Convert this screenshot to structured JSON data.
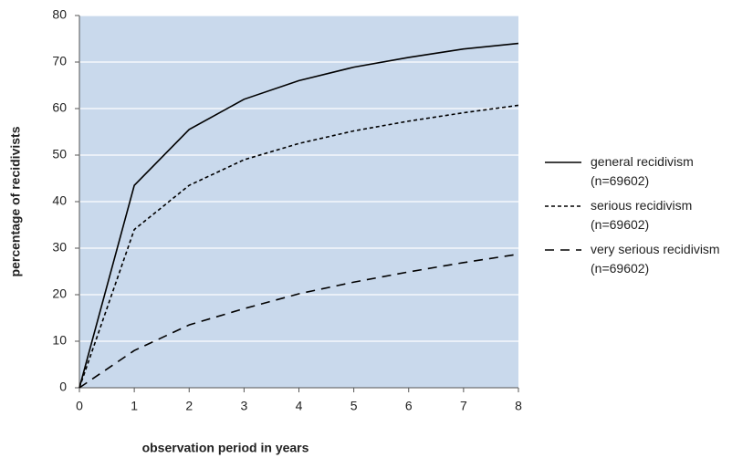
{
  "chart_data": {
    "type": "line",
    "x_label": "observation period in years",
    "y_label": "percentage of recidivists",
    "x": [
      0,
      1,
      2,
      3,
      4,
      5,
      6,
      7,
      8
    ],
    "xlim": [
      0,
      8
    ],
    "xticks": [
      0,
      1,
      2,
      3,
      4,
      5,
      6,
      7,
      8
    ],
    "ylim": [
      0,
      80
    ],
    "yticks": [
      0,
      10,
      20,
      30,
      40,
      50,
      60,
      70,
      80
    ],
    "grid": true,
    "background": "#c9d9ec",
    "legend": "right",
    "series": [
      {
        "name": "general recidivism (n=69602)",
        "color": "#000000",
        "dash": "solid",
        "values": [
          0,
          43.5,
          55.5,
          62,
          66,
          68.9,
          71,
          72.8,
          74
        ]
      },
      {
        "name": "serious recidivism (n=69602)",
        "color": "#000000",
        "dash": "dotted",
        "values": [
          0,
          34,
          43.5,
          49,
          52.5,
          55.2,
          57.3,
          59.1,
          60.7
        ]
      },
      {
        "name": "very serious recidivism (n=69602)",
        "color": "#000000",
        "dash": "dashed",
        "values": [
          0,
          8,
          13.5,
          17,
          20.2,
          22.7,
          24.9,
          26.9,
          28.7
        ]
      }
    ]
  }
}
